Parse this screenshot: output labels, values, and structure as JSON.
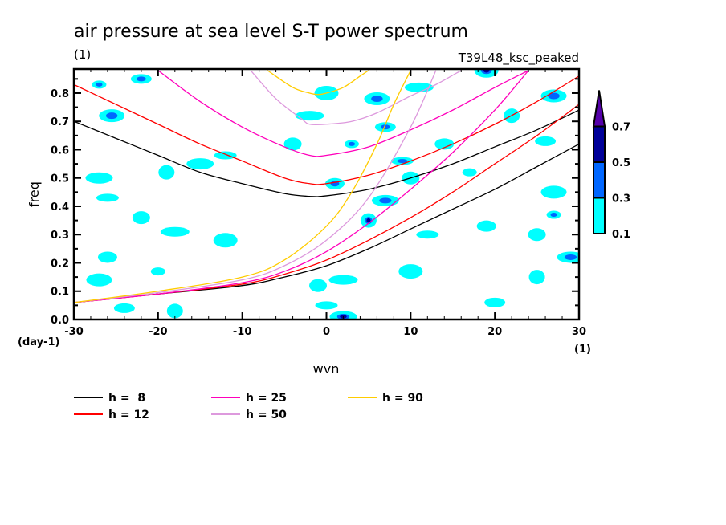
{
  "chart_data": {
    "type": "heatmap",
    "title": "air pressure at sea level S-T power spectrum",
    "subtitle_left": "(1)",
    "subtitle_right": "T39L48_ksc_peaked",
    "xlabel": "wvn",
    "ylabel": "freq",
    "x_unit": "(1)",
    "y_unit": "(day-1)",
    "xlim": [
      -30,
      30
    ],
    "ylim": [
      0.0,
      0.885
    ],
    "x_ticks": [
      -30,
      -20,
      -10,
      0,
      10,
      20,
      30
    ],
    "x_tick_labels": [
      "-30",
      "-20",
      "-10",
      "0",
      "10",
      "20",
      "30"
    ],
    "y_ticks": [
      0.0,
      0.1,
      0.2,
      0.3,
      0.4,
      0.5,
      0.6,
      0.7,
      0.8
    ],
    "y_tick_labels": [
      "0.0",
      "0.1",
      "0.2",
      "0.3",
      "0.4",
      "0.5",
      "0.6",
      "0.7",
      "0.8"
    ],
    "colorbar": {
      "levels": [
        "0.1",
        "0.3",
        "0.5",
        "0.7"
      ],
      "colors": [
        "#00ffff",
        "#0066ff",
        "#000099",
        "#5500aa"
      ],
      "extend": "max"
    },
    "contour_blobs": [
      {
        "x": -27,
        "y": 0.83,
        "level": 1
      },
      {
        "x": -25.5,
        "y": 0.72,
        "level": 1
      },
      {
        "x": -22,
        "y": 0.85,
        "level": 1
      },
      {
        "x": -19,
        "y": 0.52,
        "level": 0
      },
      {
        "x": -27,
        "y": 0.5,
        "level": 0
      },
      {
        "x": -26,
        "y": 0.43,
        "level": 0
      },
      {
        "x": -22,
        "y": 0.36,
        "level": 0
      },
      {
        "x": -18,
        "y": 0.31,
        "level": 0
      },
      {
        "x": -12,
        "y": 0.28,
        "level": 0
      },
      {
        "x": -26,
        "y": 0.22,
        "level": 0
      },
      {
        "x": -20,
        "y": 0.17,
        "level": 0
      },
      {
        "x": -27,
        "y": 0.14,
        "level": 0
      },
      {
        "x": -24,
        "y": 0.04,
        "level": 0
      },
      {
        "x": -18,
        "y": 0.03,
        "level": 0
      },
      {
        "x": -15,
        "y": 0.55,
        "level": 0
      },
      {
        "x": -12,
        "y": 0.58,
        "level": 0
      },
      {
        "x": -4,
        "y": 0.62,
        "level": 0
      },
      {
        "x": -2,
        "y": 0.72,
        "level": 0
      },
      {
        "x": 0,
        "y": 0.8,
        "level": 0
      },
      {
        "x": 1,
        "y": 0.48,
        "level": 1
      },
      {
        "x": 3,
        "y": 0.62,
        "level": 1
      },
      {
        "x": 6,
        "y": 0.78,
        "level": 1
      },
      {
        "x": 7,
        "y": 0.68,
        "level": 1
      },
      {
        "x": 5,
        "y": 0.35,
        "level": 2
      },
      {
        "x": 7,
        "y": 0.42,
        "level": 1
      },
      {
        "x": 9,
        "y": 0.56,
        "level": 1
      },
      {
        "x": 10,
        "y": 0.5,
        "level": 0
      },
      {
        "x": 11,
        "y": 0.82,
        "level": 0
      },
      {
        "x": 19,
        "y": 0.88,
        "level": 2
      },
      {
        "x": 14,
        "y": 0.62,
        "level": 0
      },
      {
        "x": 17,
        "y": 0.52,
        "level": 0
      },
      {
        "x": 27,
        "y": 0.79,
        "level": 1
      },
      {
        "x": 26,
        "y": 0.63,
        "level": 0
      },
      {
        "x": 22,
        "y": 0.72,
        "level": 0
      },
      {
        "x": 2,
        "y": 0.01,
        "level": 2
      },
      {
        "x": 0,
        "y": 0.05,
        "level": 0
      },
      {
        "x": -1,
        "y": 0.12,
        "level": 0
      },
      {
        "x": 2,
        "y": 0.14,
        "level": 0
      },
      {
        "x": 10,
        "y": 0.17,
        "level": 0
      },
      {
        "x": 19,
        "y": 0.33,
        "level": 0
      },
      {
        "x": 27,
        "y": 0.37,
        "level": 1
      },
      {
        "x": 27,
        "y": 0.45,
        "level": 0
      },
      {
        "x": 20,
        "y": 0.06,
        "level": 0
      },
      {
        "x": 25,
        "y": 0.15,
        "level": 0
      },
      {
        "x": 29,
        "y": 0.22,
        "level": 1
      },
      {
        "x": 12,
        "y": 0.3,
        "level": 0
      },
      {
        "x": 25,
        "y": 0.3,
        "level": 0
      }
    ],
    "series": [
      {
        "name": "h =  8",
        "color": "#000000",
        "branch": "inertia-gravity",
        "x": [
          -30,
          -25,
          -20,
          -15,
          -10,
          -5,
          -2,
          0,
          5,
          10,
          15,
          20,
          25,
          30
        ],
        "y": [
          0.7,
          0.64,
          0.58,
          0.52,
          0.48,
          0.445,
          0.435,
          0.437,
          0.46,
          0.5,
          0.55,
          0.61,
          0.67,
          0.74
        ]
      },
      {
        "name": "h =  8",
        "color": "#000000",
        "branch": "kelvin",
        "x": [
          -30,
          -20,
          -10,
          -5,
          0,
          5,
          10,
          15,
          20,
          25,
          30
        ],
        "y": [
          0.06,
          0.09,
          0.12,
          0.15,
          0.19,
          0.25,
          0.32,
          0.39,
          0.46,
          0.54,
          0.62
        ]
      },
      {
        "name": "h = 12",
        "color": "#ff0000",
        "branch": "inertia-gravity",
        "x": [
          -30,
          -25,
          -20,
          -15,
          -10,
          -5,
          -2,
          0,
          5,
          10,
          15,
          20,
          25,
          30
        ],
        "y": [
          0.83,
          0.76,
          0.69,
          0.62,
          0.56,
          0.5,
          0.48,
          0.48,
          0.51,
          0.56,
          0.62,
          0.69,
          0.77,
          0.86
        ]
      },
      {
        "name": "h = 12",
        "color": "#ff0000",
        "branch": "kelvin",
        "x": [
          -30,
          -20,
          -10,
          -5,
          0,
          5,
          10,
          15,
          20,
          25,
          30
        ],
        "y": [
          0.06,
          0.09,
          0.125,
          0.16,
          0.21,
          0.28,
          0.36,
          0.45,
          0.55,
          0.65,
          0.76
        ]
      },
      {
        "name": "h = 25",
        "color": "#ff00bb",
        "branch": "inertia-gravity",
        "x": [
          -20,
          -15,
          -10,
          -5,
          -2,
          0,
          5,
          10,
          15,
          20,
          24
        ],
        "y": [
          0.88,
          0.77,
          0.68,
          0.61,
          0.58,
          0.58,
          0.61,
          0.67,
          0.74,
          0.82,
          0.88
        ]
      },
      {
        "name": "h = 25",
        "color": "#ff00bb",
        "branch": "kelvin",
        "x": [
          -30,
          -20,
          -10,
          -5,
          0,
          5,
          10,
          15,
          20,
          24
        ],
        "y": [
          0.06,
          0.09,
          0.13,
          0.17,
          0.24,
          0.34,
          0.46,
          0.59,
          0.74,
          0.88
        ]
      },
      {
        "name": "h = 50",
        "color": "#dd99dd",
        "branch": "inertia-gravity",
        "x": [
          -9,
          -6,
          -3,
          -2,
          0,
          3,
          6,
          10,
          13,
          16
        ],
        "y": [
          0.88,
          0.78,
          0.71,
          0.69,
          0.69,
          0.7,
          0.73,
          0.79,
          0.83,
          0.88
        ]
      },
      {
        "name": "h = 50",
        "color": "#dd99dd",
        "branch": "kelvin",
        "x": [
          -30,
          -20,
          -10,
          -5,
          0,
          5,
          10,
          13
        ],
        "y": [
          0.06,
          0.095,
          0.14,
          0.19,
          0.28,
          0.43,
          0.68,
          0.88
        ]
      },
      {
        "name": "h = 90",
        "color": "#ffcc00",
        "branch": "inertia-gravity",
        "x": [
          -7,
          -4,
          -2,
          -1,
          0,
          2,
          4,
          5
        ],
        "y": [
          0.88,
          0.82,
          0.8,
          0.795,
          0.8,
          0.82,
          0.86,
          0.88
        ]
      },
      {
        "name": "h = 90",
        "color": "#ffcc00",
        "branch": "kelvin",
        "x": [
          -30,
          -20,
          -10,
          -5,
          0,
          3,
          6,
          8,
          10
        ],
        "y": [
          0.06,
          0.1,
          0.15,
          0.21,
          0.33,
          0.45,
          0.62,
          0.76,
          0.88
        ]
      }
    ],
    "legend": [
      {
        "label": "h =  8",
        "color": "#000000"
      },
      {
        "label": "h = 12",
        "color": "#ff0000"
      },
      {
        "label": "h = 25",
        "color": "#ff00bb"
      },
      {
        "label": "h = 50",
        "color": "#dd99dd"
      },
      {
        "label": "h = 90",
        "color": "#ffcc00"
      }
    ],
    "legend_position": "bottom-left",
    "grid": false
  }
}
